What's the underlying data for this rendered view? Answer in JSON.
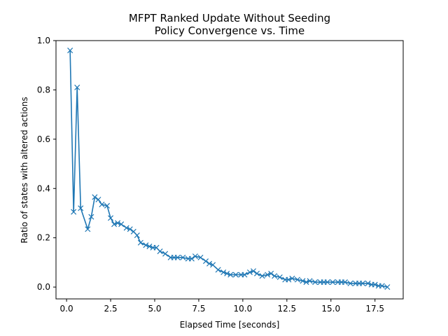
{
  "chart_data": {
    "type": "line",
    "title": [
      "MFPT Ranked Update Without Seeding",
      "Policy Convergence vs. Time"
    ],
    "xlabel": "Elapsed Time [seconds]",
    "ylabel": "Ratio of states with altered actions",
    "xlim": [
      -0.6,
      19.1
    ],
    "ylim": [
      -0.048,
      1.0
    ],
    "xticks": [
      0.0,
      2.5,
      5.0,
      7.5,
      10.0,
      12.5,
      15.0,
      17.5
    ],
    "xtick_labels": [
      "0.0",
      "2.5",
      "5.0",
      "7.5",
      "10.0",
      "12.5",
      "15.0",
      "17.5"
    ],
    "yticks": [
      0.0,
      0.2,
      0.4,
      0.6,
      0.8,
      1.0
    ],
    "ytick_labels": [
      "0.0",
      "0.2",
      "0.4",
      "0.6",
      "0.8",
      "1.0"
    ],
    "grid": false,
    "color": "#1f77b4",
    "marker": "x",
    "series": [
      {
        "x": [
          0.2,
          0.4,
          0.6,
          0.8,
          1.2,
          1.4,
          1.6,
          1.8,
          2.0,
          2.3,
          2.5,
          2.7,
          2.9,
          3.1,
          3.4,
          3.6,
          3.8,
          4.0,
          4.2,
          4.5,
          4.7,
          4.9,
          5.1,
          5.3,
          5.6,
          5.9,
          6.1,
          6.3,
          6.6,
          6.9,
          7.1,
          7.3,
          7.6,
          7.9,
          8.1,
          8.3,
          8.6,
          8.9,
          9.1,
          9.3,
          9.6,
          9.9,
          10.1,
          10.4,
          10.6,
          10.8,
          11.1,
          11.4,
          11.6,
          11.8,
          12.1,
          12.4,
          12.6,
          12.8,
          13.1,
          13.4,
          13.6,
          13.8,
          14.1,
          14.4,
          14.6,
          14.8,
          15.1,
          15.4,
          15.6,
          15.8,
          16.1,
          16.4,
          16.6,
          16.8,
          17.1,
          17.3,
          17.5,
          17.7,
          17.9,
          18.2
        ],
        "y": [
          0.96,
          0.305,
          0.81,
          0.32,
          0.235,
          0.285,
          0.365,
          0.355,
          0.335,
          0.33,
          0.28,
          0.255,
          0.26,
          0.255,
          0.24,
          0.235,
          0.225,
          0.21,
          0.18,
          0.17,
          0.165,
          0.16,
          0.16,
          0.145,
          0.135,
          0.12,
          0.12,
          0.12,
          0.12,
          0.115,
          0.115,
          0.125,
          0.12,
          0.105,
          0.095,
          0.09,
          0.07,
          0.06,
          0.055,
          0.05,
          0.05,
          0.05,
          0.05,
          0.06,
          0.065,
          0.055,
          0.045,
          0.05,
          0.055,
          0.045,
          0.04,
          0.03,
          0.03,
          0.035,
          0.03,
          0.025,
          0.02,
          0.025,
          0.02,
          0.02,
          0.02,
          0.02,
          0.02,
          0.02,
          0.02,
          0.02,
          0.015,
          0.015,
          0.015,
          0.015,
          0.015,
          0.01,
          0.01,
          0.005,
          0.005,
          0.0
        ]
      }
    ]
  }
}
